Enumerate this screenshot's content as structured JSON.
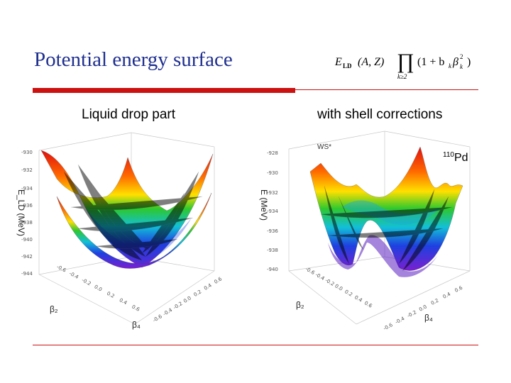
{
  "slide": {
    "title": "Potential energy surface",
    "formula": {
      "lhs": "E",
      "lhs_sub": "LD",
      "args": "(A, Z)",
      "product_lower": "k≥2",
      "factor": "(1 + b",
      "factor_sub": "k",
      "beta": "β",
      "beta_sup": "2",
      "beta_sub": "k",
      "close": ")"
    }
  },
  "panels": {
    "left": {
      "label": "Liquid drop part",
      "y_axis_label": "E_LD (MeV)",
      "y_ticks": [
        "-930",
        "-932",
        "-934",
        "-936",
        "-938",
        "-940",
        "-942",
        "-944"
      ],
      "x_ticks": [
        "-0.6",
        "-0.4",
        "-0.2",
        "0.0",
        "0.2",
        "0.4",
        "0.6"
      ],
      "z_ticks": [
        "-0.6",
        "-0.4",
        "-0.2",
        "0.0",
        "0.2",
        "0.4",
        "0.6"
      ],
      "x_axis_label": "β₂",
      "z_axis_label": "β₄"
    },
    "right": {
      "label": "with shell corrections",
      "tag": "WS*",
      "nucleus_mass": "110",
      "nucleus_symbol": "Pd",
      "y_axis_label": "E (MeV)",
      "y_ticks": [
        "-928",
        "-930",
        "-932",
        "-934",
        "-936",
        "-938",
        "-940"
      ],
      "x_ticks": [
        "-0.6",
        "-0.4",
        "-0.2",
        "0.0",
        "0.2",
        "0.4",
        "0.6"
      ],
      "z_ticks": [
        "-0.6",
        "-0.4",
        "-0.2",
        "0.0",
        "0.2",
        "0.4",
        "0.6"
      ],
      "x_axis_label": "β₂",
      "z_axis_label": "β₄"
    }
  },
  "colors": {
    "title": "#1f2f8f",
    "rule": "#cc1111",
    "surface_high": "#e01010",
    "surface_mid": "#ffe000",
    "surface_low": "#7a1fd0"
  }
}
